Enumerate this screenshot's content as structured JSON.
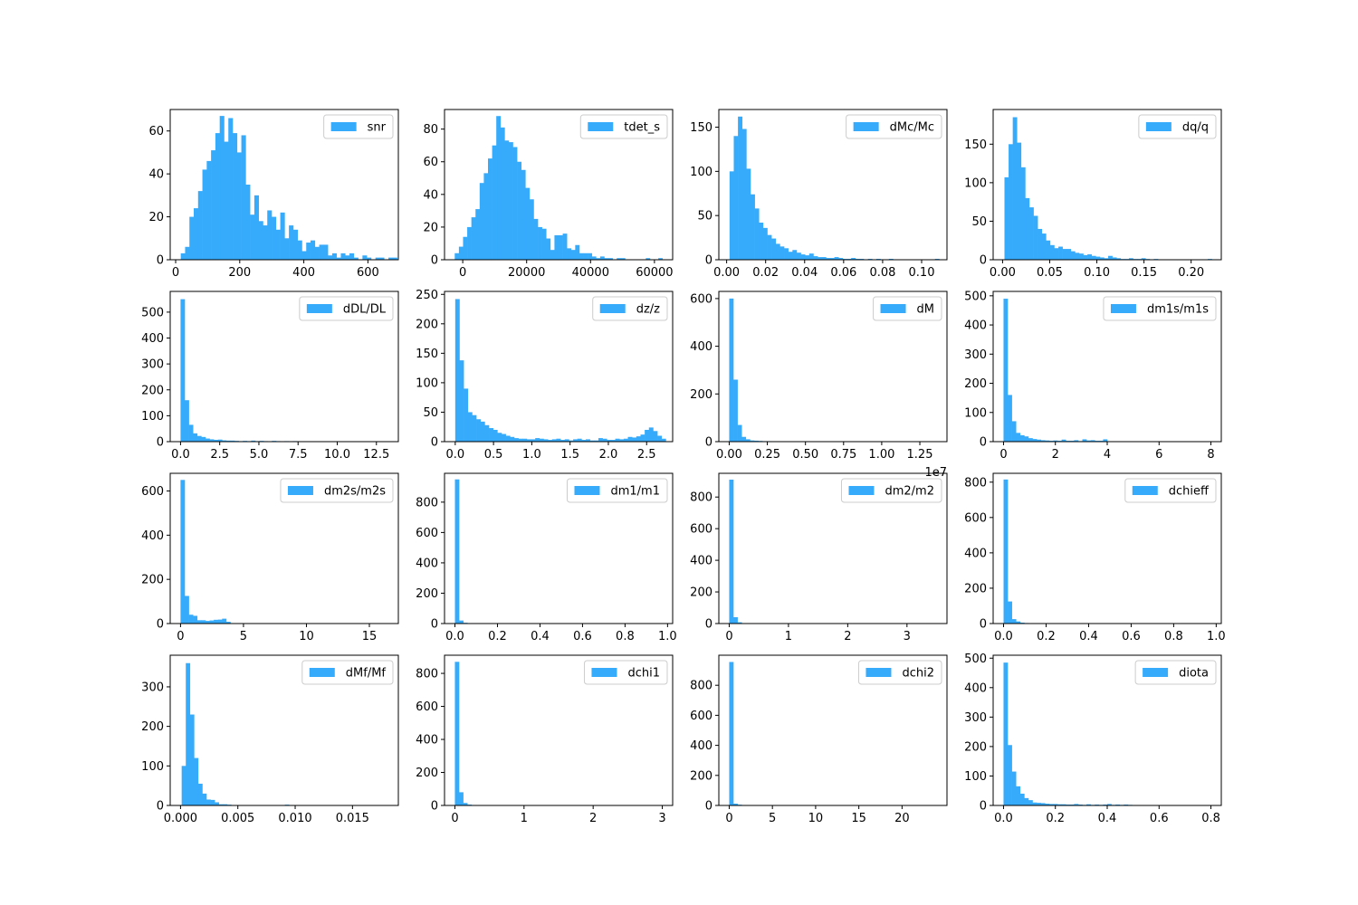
{
  "chart_data": [
    {
      "type": "bar",
      "legend": "snr",
      "bin_start": 16,
      "bin_width": 13.5,
      "counts": [
        3,
        6,
        20,
        24,
        32,
        42,
        46,
        51,
        59,
        67,
        55,
        66,
        59,
        50,
        58,
        35,
        21,
        30,
        18,
        16,
        23,
        20,
        14,
        22,
        10,
        16,
        14,
        9,
        4,
        8,
        9,
        6,
        7,
        7,
        2,
        3,
        1,
        3,
        2,
        3,
        1,
        0,
        2,
        1,
        0,
        1,
        1,
        0,
        1,
        1
      ],
      "xlim": [
        -17,
        695
      ],
      "ylim": [
        0,
        70
      ],
      "xticks": [
        0,
        200,
        400,
        600
      ],
      "xtick_labels": [
        "0",
        "200",
        "400",
        "600"
      ],
      "yticks": [
        0,
        20,
        40,
        60
      ],
      "ytick_labels": [
        "0",
        "20",
        "40",
        "60"
      ]
    },
    {
      "type": "bar",
      "legend": "tdet_s",
      "bin_start": -2500,
      "bin_width": 1300,
      "counts": [
        4,
        8,
        14,
        20,
        26,
        31,
        47,
        53,
        62,
        70,
        88,
        81,
        73,
        72,
        69,
        60,
        55,
        44,
        37,
        25,
        20,
        19,
        13,
        6,
        15,
        15,
        16,
        7,
        6,
        9,
        4,
        4,
        4,
        2,
        1,
        2,
        1,
        1,
        0,
        1,
        1,
        0,
        0,
        0,
        0,
        0,
        1,
        0,
        0,
        1
      ],
      "xlim": [
        -5700,
        65700
      ],
      "ylim": [
        0,
        92
      ],
      "xticks": [
        0,
        20000,
        40000,
        60000
      ],
      "xtick_labels": [
        "0",
        "20000",
        "40000",
        "60000"
      ],
      "yticks": [
        0,
        20,
        40,
        60,
        80
      ],
      "ytick_labels": [
        "0",
        "20",
        "40",
        "60",
        "80"
      ]
    },
    {
      "type": "bar",
      "legend": "dMc/Mc",
      "bin_start": 0.0015,
      "bin_width": 0.00215,
      "counts": [
        100,
        140,
        162,
        148,
        103,
        74,
        58,
        42,
        36,
        28,
        24,
        18,
        15,
        13,
        9,
        11,
        8,
        6,
        5,
        7,
        4,
        3,
        3,
        2,
        2,
        3,
        2,
        1,
        1,
        2,
        1,
        1,
        0,
        1,
        0,
        1,
        0,
        0,
        1,
        0,
        0,
        0,
        0,
        0,
        0,
        0,
        0,
        0,
        0,
        1
      ],
      "xlim": [
        -0.004,
        0.113
      ],
      "ylim": [
        0,
        170
      ],
      "xticks": [
        0.0,
        0.02,
        0.04,
        0.06,
        0.08,
        0.1
      ],
      "xtick_labels": [
        "0.00",
        "0.02",
        "0.04",
        "0.06",
        "0.08",
        "0.10"
      ],
      "yticks": [
        0,
        50,
        100,
        150
      ],
      "ytick_labels": [
        "0",
        "50",
        "100",
        "150"
      ]
    },
    {
      "type": "bar",
      "legend": "dq/q",
      "bin_start": 0.002,
      "bin_width": 0.0044,
      "counts": [
        107,
        150,
        185,
        152,
        120,
        80,
        68,
        57,
        40,
        34,
        25,
        19,
        15,
        17,
        14,
        14,
        11,
        9,
        8,
        6,
        7,
        5,
        4,
        3,
        2,
        5,
        3,
        2,
        1,
        1,
        2,
        1,
        1,
        2,
        1,
        0,
        1,
        0,
        0,
        0,
        0,
        0,
        0,
        0,
        0,
        0,
        0,
        0,
        0,
        1
      ],
      "xlim": [
        -0.01,
        0.232
      ],
      "ylim": [
        0,
        195
      ],
      "xticks": [
        0.0,
        0.05,
        0.1,
        0.15,
        0.2
      ],
      "xtick_labels": [
        "0.00",
        "0.05",
        "0.10",
        "0.15",
        "0.20"
      ],
      "yticks": [
        0,
        50,
        100,
        150
      ],
      "ytick_labels": [
        "0",
        "50",
        "100",
        "150"
      ]
    },
    {
      "type": "bar",
      "legend": "dDL/DL",
      "bin_start": 0,
      "bin_width": 0.265,
      "counts": [
        550,
        160,
        65,
        32,
        22,
        18,
        12,
        9,
        7,
        8,
        5,
        4,
        4,
        3,
        2,
        3,
        2,
        4,
        2,
        3,
        2,
        1,
        3,
        2,
        1,
        2,
        1,
        2,
        1,
        1,
        0,
        1,
        0,
        0,
        0,
        0,
        0,
        0,
        0,
        0,
        0,
        0,
        0,
        0,
        0,
        0,
        0,
        0,
        0,
        0
      ],
      "xlim": [
        -0.66,
        13.9
      ],
      "ylim": [
        0,
        580
      ],
      "xticks": [
        0,
        2.5,
        5,
        7.5,
        10,
        12.5
      ],
      "xtick_labels": [
        "0.0",
        "2.5",
        "5.0",
        "7.5",
        "10.0",
        "12.5"
      ],
      "yticks": [
        0,
        100,
        200,
        300,
        400,
        500
      ],
      "ytick_labels": [
        "0",
        "100",
        "200",
        "300",
        "400",
        "500"
      ]
    },
    {
      "type": "bar",
      "legend": "dz/z",
      "bin_start": 0,
      "bin_width": 0.055,
      "counts": [
        242,
        138,
        90,
        50,
        45,
        38,
        34,
        28,
        23,
        20,
        15,
        13,
        10,
        8,
        6,
        5,
        5,
        4,
        4,
        6,
        5,
        4,
        3,
        4,
        5,
        3,
        4,
        2,
        4,
        5,
        3,
        4,
        2,
        2,
        6,
        5,
        3,
        3,
        5,
        4,
        5,
        8,
        7,
        9,
        12,
        20,
        24,
        18,
        10,
        5
      ],
      "xlim": [
        -0.14,
        2.84
      ],
      "ylim": [
        0,
        255
      ],
      "xticks": [
        0,
        0.5,
        1,
        1.5,
        2,
        2.5
      ],
      "xtick_labels": [
        "0.0",
        "0.5",
        "1.0",
        "1.5",
        "2.0",
        "2.5"
      ],
      "yticks": [
        0,
        50,
        100,
        150,
        200,
        250
      ],
      "ytick_labels": [
        "0",
        "50",
        "100",
        "150",
        "200",
        "250"
      ]
    },
    {
      "type": "bar",
      "legend": "dM",
      "bin_start": 0,
      "bin_width": 0.0272,
      "counts": [
        600,
        260,
        70,
        20,
        10,
        5,
        4,
        3,
        2,
        2,
        1,
        1,
        1,
        0,
        0,
        0,
        0,
        0,
        0,
        0,
        0,
        0,
        0,
        0,
        0,
        0,
        0,
        0,
        0,
        0,
        0,
        0,
        0,
        0,
        0,
        0,
        0,
        0,
        0,
        0,
        0,
        0,
        0,
        0,
        0,
        0,
        0,
        0,
        0,
        1
      ],
      "xlim": [
        -0.068,
        1.428
      ],
      "ylim": [
        0,
        630
      ],
      "xticks": [
        0,
        0.25,
        0.5,
        0.75,
        1,
        1.25
      ],
      "xtick_labels": [
        "0.00",
        "0.25",
        "0.50",
        "0.75",
        "1.00",
        "1.25"
      ],
      "yticks": [
        0,
        200,
        400,
        600
      ],
      "ytick_labels": [
        "0",
        "200",
        "400",
        "600"
      ],
      "offset_text": "1e7"
    },
    {
      "type": "bar",
      "legend": "dm1s/m1s",
      "bin_start": 0,
      "bin_width": 0.16,
      "counts": [
        490,
        160,
        70,
        30,
        22,
        18,
        12,
        9,
        7,
        5,
        4,
        3,
        4,
        3,
        7,
        3,
        3,
        5,
        2,
        8,
        4,
        5,
        3,
        3,
        8,
        1,
        0,
        1,
        0,
        0,
        0,
        0,
        0,
        0,
        0,
        0,
        0,
        0,
        0,
        0,
        0,
        0,
        0,
        0,
        0,
        0,
        0,
        0,
        0,
        1
      ],
      "xlim": [
        -0.4,
        8.4
      ],
      "ylim": [
        0,
        515
      ],
      "xticks": [
        0,
        2,
        4,
        6,
        8
      ],
      "xtick_labels": [
        "0",
        "2",
        "4",
        "6",
        "8"
      ],
      "yticks": [
        0,
        100,
        200,
        300,
        400,
        500
      ],
      "ytick_labels": [
        "0",
        "100",
        "200",
        "300",
        "400",
        "500"
      ]
    },
    {
      "type": "bar",
      "legend": "dm2s/m2s",
      "bin_start": 0,
      "bin_width": 0.33,
      "counts": [
        650,
        125,
        40,
        35,
        15,
        15,
        12,
        14,
        17,
        18,
        22,
        8,
        0,
        0,
        0,
        0,
        0,
        0,
        0,
        0,
        0,
        0,
        0,
        0,
        0,
        0,
        0,
        0,
        0,
        0,
        0,
        0,
        0,
        0,
        0,
        0,
        0,
        0,
        0,
        0,
        0,
        0,
        0,
        0,
        0,
        0,
        0,
        0,
        0,
        1
      ],
      "xlim": [
        -0.82,
        17.3
      ],
      "ylim": [
        0,
        680
      ],
      "xticks": [
        0,
        5,
        10,
        15
      ],
      "xtick_labels": [
        "0",
        "5",
        "10",
        "15"
      ],
      "yticks": [
        0,
        200,
        400,
        600
      ],
      "ytick_labels": [
        "0",
        "200",
        "400",
        "600"
      ]
    },
    {
      "type": "bar",
      "legend": "dm1/m1",
      "bin_start": 0,
      "bin_width": 0.0195,
      "counts": [
        950,
        20,
        5,
        0,
        0,
        0,
        0,
        0,
        0,
        0,
        0,
        0,
        0,
        0,
        0,
        0,
        0,
        0,
        0,
        0,
        0,
        0,
        0,
        0,
        0,
        0,
        0,
        0,
        0,
        0,
        0,
        0,
        0,
        0,
        0,
        0,
        0,
        0,
        0,
        0,
        0,
        0,
        0,
        0,
        0,
        0,
        0,
        0,
        0,
        1
      ],
      "xlim": [
        -0.049,
        1.024
      ],
      "ylim": [
        0,
        990
      ],
      "xticks": [
        0,
        0.2,
        0.4,
        0.6,
        0.8,
        1.0
      ],
      "xtick_labels": [
        "0.0",
        "0.2",
        "0.4",
        "0.6",
        "0.8",
        "1.0"
      ],
      "yticks": [
        0,
        200,
        400,
        600,
        800
      ],
      "ytick_labels": [
        "0",
        "200",
        "400",
        "600",
        "800"
      ]
    },
    {
      "type": "bar",
      "legend": "dm2/m2",
      "bin_start": 0,
      "bin_width": 0.07,
      "counts": [
        910,
        40,
        8,
        0,
        0,
        0,
        0,
        0,
        0,
        0,
        0,
        0,
        0,
        0,
        0,
        0,
        0,
        0,
        0,
        0,
        0,
        0,
        0,
        0,
        0,
        0,
        0,
        0,
        0,
        0,
        0,
        0,
        0,
        0,
        0,
        0,
        0,
        0,
        0,
        0,
        0,
        0,
        0,
        0,
        0,
        0,
        0,
        0,
        0,
        1
      ],
      "xlim": [
        -0.175,
        3.675
      ],
      "ylim": [
        0,
        950
      ],
      "xticks": [
        0,
        1,
        2,
        3
      ],
      "xtick_labels": [
        "0",
        "1",
        "2",
        "3"
      ],
      "yticks": [
        0,
        200,
        400,
        600,
        800
      ],
      "ytick_labels": [
        "0",
        "200",
        "400",
        "600",
        "800"
      ]
    },
    {
      "type": "bar",
      "legend": "dchieff",
      "bin_start": 0,
      "bin_width": 0.0195,
      "counts": [
        815,
        125,
        25,
        12,
        5,
        3,
        0,
        0,
        0,
        0,
        0,
        0,
        0,
        0,
        0,
        0,
        0,
        0,
        0,
        0,
        0,
        0,
        0,
        0,
        0,
        0,
        0,
        0,
        0,
        0,
        0,
        0,
        0,
        0,
        0,
        0,
        0,
        0,
        0,
        0,
        0,
        0,
        0,
        0,
        0,
        0,
        0,
        0,
        0,
        1
      ],
      "xlim": [
        -0.049,
        1.024
      ],
      "ylim": [
        0,
        850
      ],
      "xticks": [
        0,
        0.2,
        0.4,
        0.6,
        0.8,
        1.0
      ],
      "xtick_labels": [
        "0.0",
        "0.2",
        "0.4",
        "0.6",
        "0.8",
        "1.0"
      ],
      "yticks": [
        0,
        200,
        400,
        600,
        800
      ],
      "ytick_labels": [
        "0",
        "200",
        "400",
        "600",
        "800"
      ]
    },
    {
      "type": "bar",
      "legend": "dMf/Mf",
      "bin_start": 0.0001,
      "bin_width": 0.00036,
      "counts": [
        100,
        360,
        230,
        120,
        55,
        30,
        15,
        14,
        8,
        3,
        3,
        2,
        1,
        0,
        0,
        0,
        0,
        0,
        0,
        0,
        0,
        0,
        0,
        0,
        0,
        2,
        1,
        0,
        0,
        0,
        0,
        0,
        0,
        0,
        0,
        0,
        0,
        0,
        0,
        0,
        0,
        0,
        0,
        0,
        0,
        0,
        0,
        0,
        0,
        0
      ],
      "xlim": [
        -0.0009,
        0.019
      ],
      "ylim": [
        0,
        380
      ],
      "xticks": [
        0,
        0.005,
        0.01,
        0.015
      ],
      "xtick_labels": [
        "0.000",
        "0.005",
        "0.010",
        "0.015"
      ],
      "yticks": [
        0,
        100,
        200,
        300
      ],
      "ytick_labels": [
        "0",
        "100",
        "200",
        "300"
      ]
    },
    {
      "type": "bar",
      "legend": "dchi1",
      "bin_start": 0,
      "bin_width": 0.06,
      "counts": [
        870,
        80,
        15,
        5,
        2,
        0,
        0,
        0,
        0,
        0,
        0,
        0,
        0,
        0,
        0,
        0,
        0,
        0,
        0,
        0,
        0,
        0,
        0,
        0,
        0,
        0,
        0,
        0,
        0,
        0,
        0,
        0,
        0,
        0,
        0,
        0,
        0,
        0,
        0,
        0,
        0,
        0,
        0,
        0,
        0,
        0,
        0,
        0,
        0,
        1
      ],
      "xlim": [
        -0.15,
        3.15
      ],
      "ylim": [
        0,
        910
      ],
      "xticks": [
        0,
        1,
        2,
        3
      ],
      "xtick_labels": [
        "0",
        "1",
        "2",
        "3"
      ],
      "yticks": [
        0,
        200,
        400,
        600,
        800
      ],
      "ytick_labels": [
        "0",
        "200",
        "400",
        "600",
        "800"
      ]
    },
    {
      "type": "bar",
      "legend": "dchi2",
      "bin_start": 0,
      "bin_width": 0.48,
      "counts": [
        955,
        12,
        5,
        2,
        0,
        0,
        0,
        0,
        0,
        0,
        0,
        0,
        0,
        0,
        0,
        0,
        0,
        0,
        0,
        0,
        0,
        0,
        0,
        0,
        0,
        0,
        0,
        0,
        0,
        0,
        0,
        0,
        0,
        0,
        0,
        0,
        0,
        0,
        0,
        0,
        0,
        0,
        0,
        0,
        0,
        0,
        0,
        0,
        0,
        1
      ],
      "xlim": [
        -1.2,
        25.2
      ],
      "ylim": [
        0,
        1000
      ],
      "xticks": [
        0,
        5,
        10,
        15,
        20
      ],
      "xtick_labels": [
        "0",
        "5",
        "10",
        "15",
        "20"
      ],
      "yticks": [
        0,
        200,
        400,
        600,
        800
      ],
      "ytick_labels": [
        "0",
        "200",
        "400",
        "600",
        "800"
      ]
    },
    {
      "type": "bar",
      "legend": "diota",
      "bin_start": 0,
      "bin_width": 0.016,
      "counts": [
        485,
        205,
        115,
        65,
        40,
        25,
        18,
        10,
        9,
        8,
        6,
        5,
        5,
        4,
        4,
        3,
        3,
        5,
        3,
        2,
        4,
        2,
        3,
        2,
        3,
        5,
        2,
        3,
        2,
        3,
        2,
        1,
        0,
        1,
        0,
        1,
        0,
        0,
        0,
        0,
        0,
        0,
        0,
        0,
        0,
        0,
        0,
        0,
        0,
        1
      ],
      "xlim": [
        -0.04,
        0.84
      ],
      "ylim": [
        0,
        510
      ],
      "xticks": [
        0,
        0.2,
        0.4,
        0.6,
        0.8
      ],
      "xtick_labels": [
        "0.0",
        "0.2",
        "0.4",
        "0.6",
        "0.8"
      ],
      "yticks": [
        0,
        100,
        200,
        300,
        400,
        500
      ],
      "ytick_labels": [
        "0",
        "100",
        "200",
        "300",
        "400",
        "500"
      ]
    }
  ],
  "colors": {
    "bar": "#36abfc",
    "axis": "#000000",
    "legend_border": "#cccccc"
  }
}
